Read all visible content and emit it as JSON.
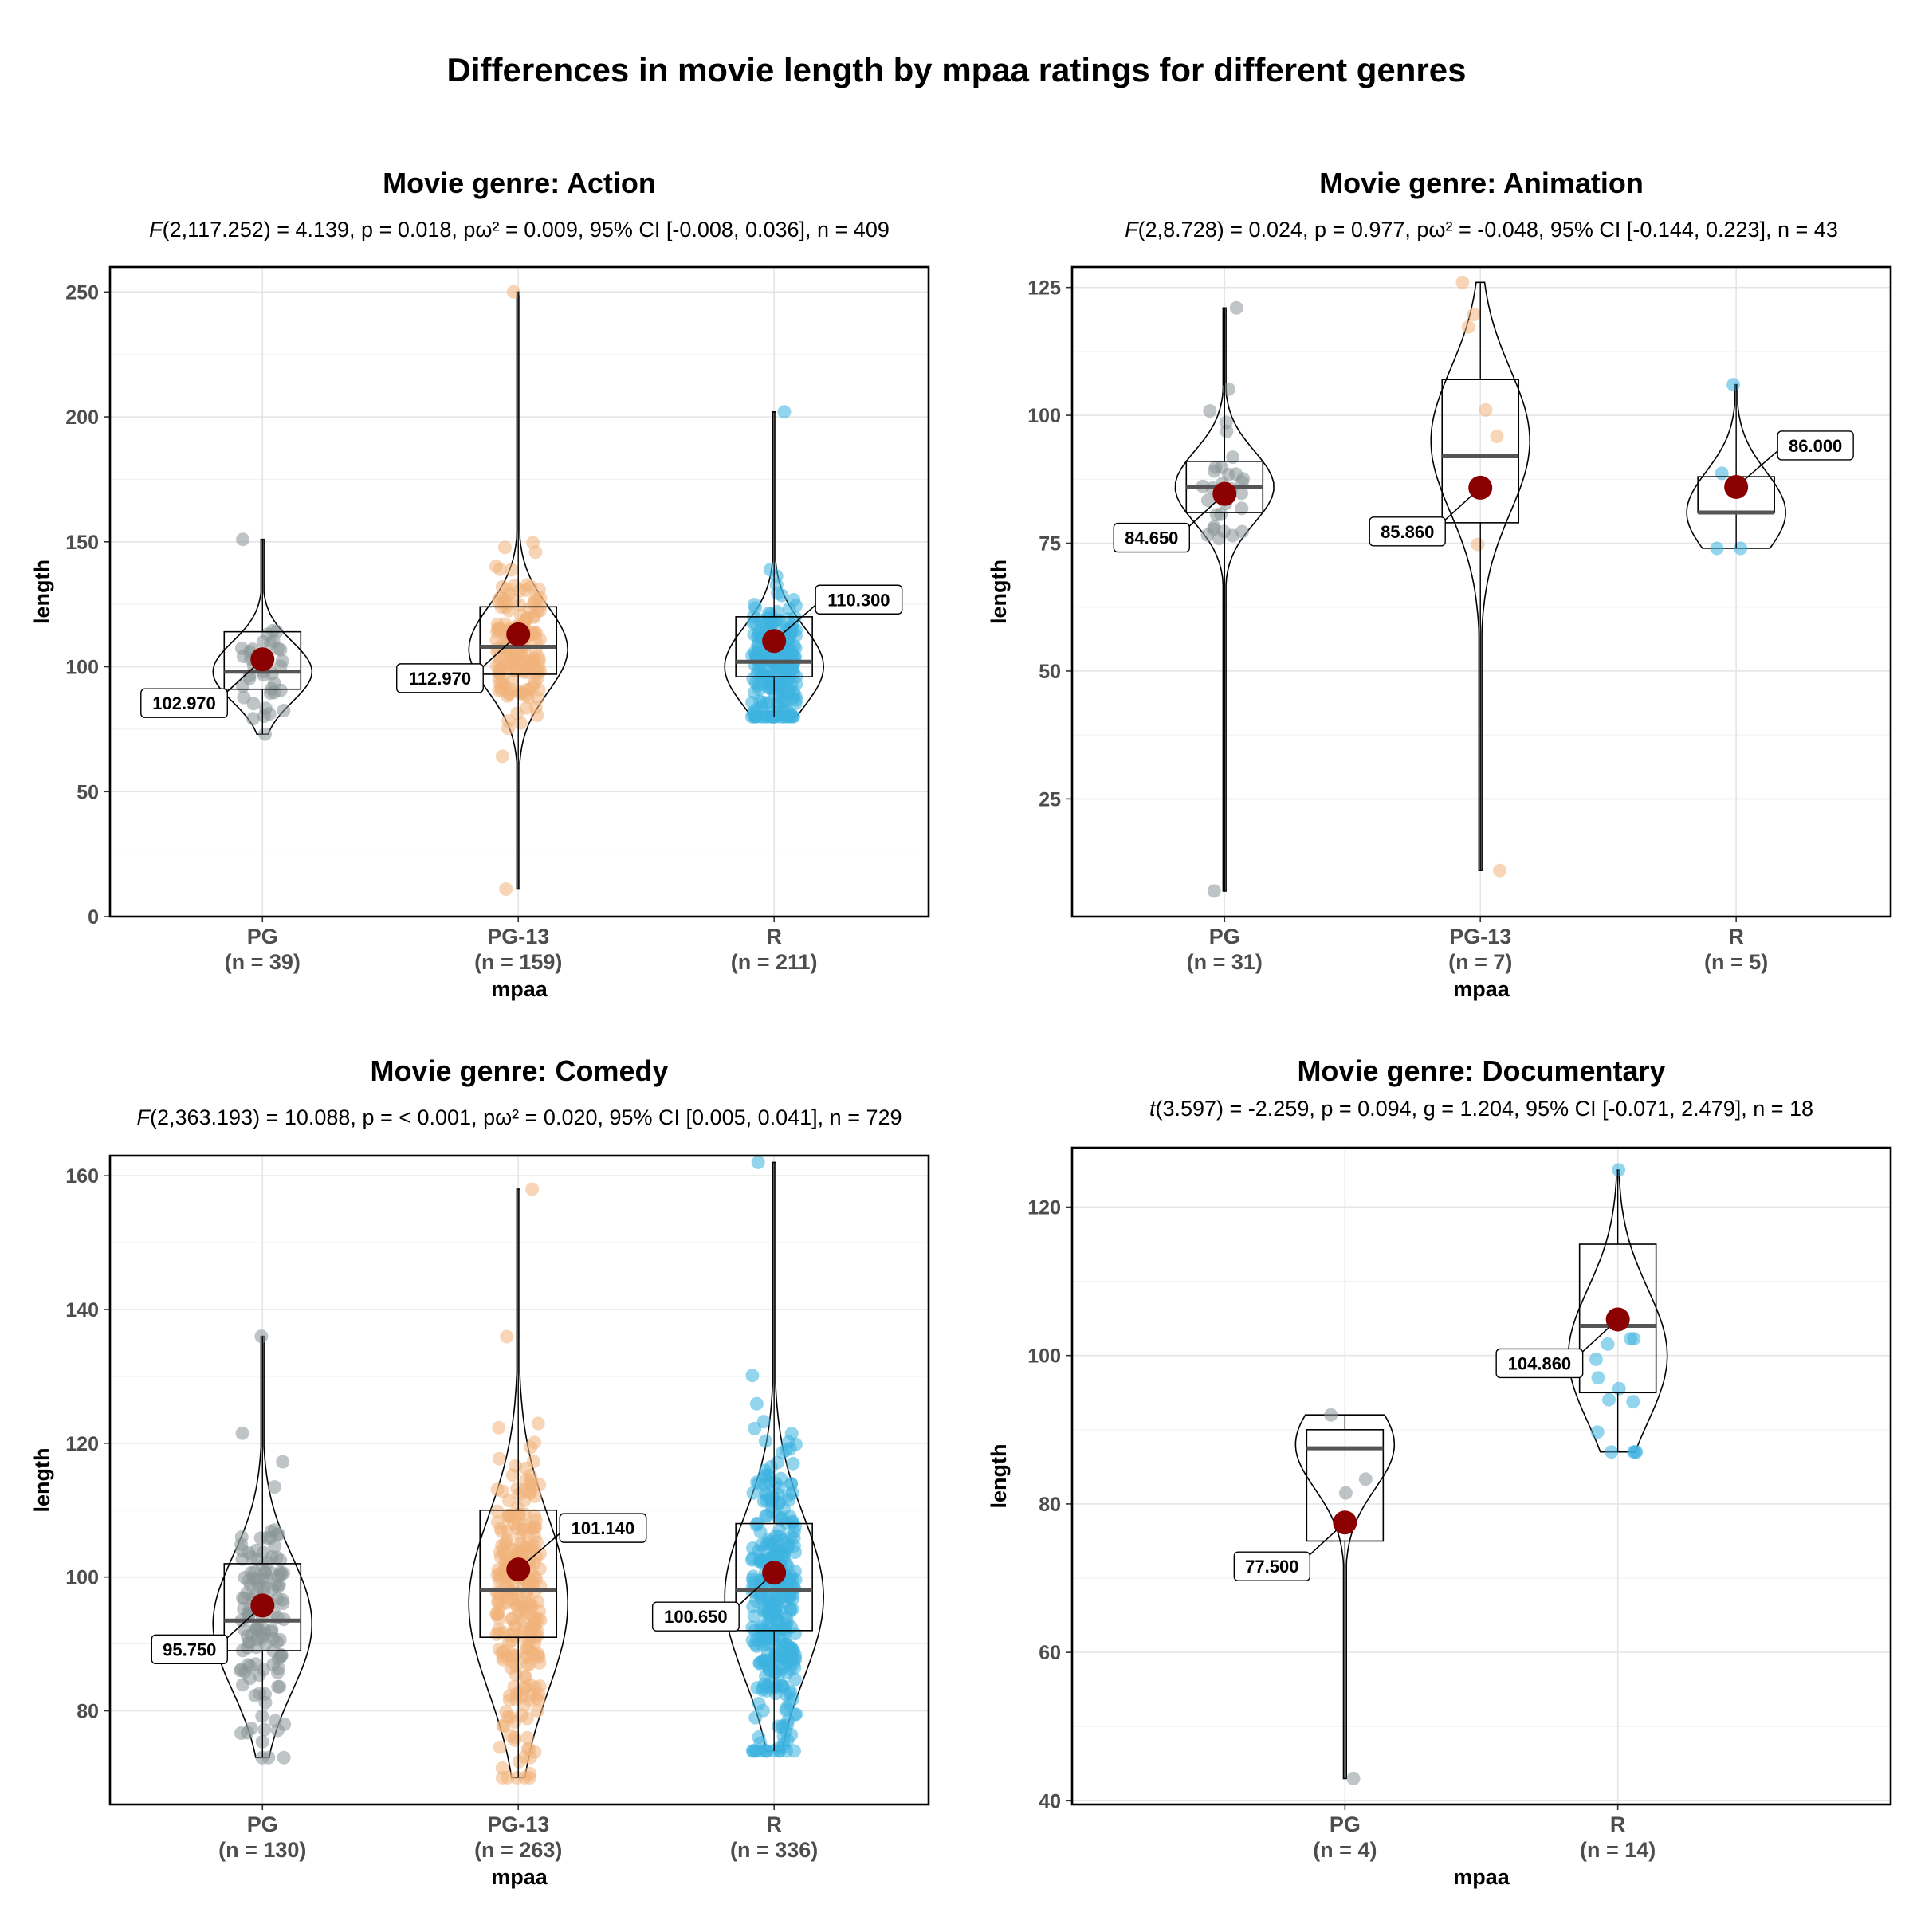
{
  "main_title": "Differences in movie length by mpaa ratings for different genres",
  "colors": {
    "PG": "#8a9597",
    "PG-13": "#f0b27a",
    "R": "#3cb2e0",
    "mean": "#8b0000",
    "median": "#555555",
    "grid": "#ebebeb"
  },
  "chart_data": [
    {
      "type": "violin-box-scatter",
      "title": "Movie genre: Action",
      "subtitle": {
        "lead": "F",
        "rest": "(2,117.252) = 4.139, p = 0.018, pω² = 0.009, 95% CI [-0.008, 0.036], n = 409"
      },
      "xlabel": "mpaa",
      "ylabel": "length",
      "ylim": [
        0,
        260
      ],
      "yticks": [
        0,
        50,
        100,
        150,
        200,
        250
      ],
      "groups": [
        {
          "name": "PG",
          "n_label": "(n = 39)",
          "min": 73,
          "max": 151,
          "q1": 91,
          "median": 98,
          "q3": 114,
          "mean": 102.97,
          "mean_label": "102.970",
          "label_side": "left",
          "n_points": 39,
          "mode": 98,
          "spread": 12
        },
        {
          "name": "PG-13",
          "n_label": "(n = 159)",
          "min": 11,
          "max": 250,
          "q1": 97,
          "median": 108,
          "q3": 124,
          "mean": 112.97,
          "mean_label": "112.970",
          "label_side": "left",
          "n_points": 159,
          "mode": 107,
          "spread": 17
        },
        {
          "name": "R",
          "n_label": "(n = 211)",
          "min": 80,
          "max": 202,
          "q1": 96,
          "median": 102,
          "q3": 120,
          "mean": 110.3,
          "mean_label": "110.300",
          "label_side": "right",
          "n_points": 211,
          "mode": 100,
          "spread": 16
        }
      ]
    },
    {
      "type": "violin-box-scatter",
      "title": "Movie genre: Animation",
      "subtitle": {
        "lead": "F",
        "rest": "(2,8.728) = 0.024, p = 0.977, pω² = -0.048, 95% CI [-0.144, 0.223], n = 43"
      },
      "xlabel": "mpaa",
      "ylabel": "length",
      "ylim": [
        2,
        129
      ],
      "yticks": [
        25,
        50,
        75,
        100,
        125
      ],
      "groups": [
        {
          "name": "PG",
          "n_label": "(n = 31)",
          "min": 7,
          "max": 121,
          "q1": 81,
          "median": 86,
          "q3": 91,
          "mean": 84.65,
          "mean_label": "84.650",
          "label_side": "left",
          "n_points": 31,
          "mode": 86,
          "spread": 7
        },
        {
          "name": "PG-13",
          "n_label": "(n = 7)",
          "min": 11,
          "max": 126,
          "q1": 79,
          "median": 92,
          "q3": 107,
          "mean": 85.86,
          "mean_label": "85.860",
          "label_side": "left",
          "n_points": 7,
          "mode": 95,
          "spread": 14
        },
        {
          "name": "R",
          "n_label": "(n = 5)",
          "min": 74,
          "max": 106,
          "q1": 81,
          "median": 81,
          "q3": 88,
          "mean": 86.0,
          "mean_label": "86.000",
          "label_side": "right",
          "n_points": 5,
          "mode": 81,
          "spread": 8
        }
      ]
    },
    {
      "type": "violin-box-scatter",
      "title": "Movie genre: Comedy",
      "subtitle": {
        "lead": "F",
        "rest": "(2,363.193) = 10.088, p = < 0.001, pω² = 0.020, 95% CI [0.005, 0.041], n = 729"
      },
      "xlabel": "mpaa",
      "ylabel": "length",
      "ylim": [
        66,
        163
      ],
      "yticks": [
        80,
        100,
        120,
        140,
        160
      ],
      "groups": [
        {
          "name": "PG",
          "n_label": "(n = 130)",
          "min": 73,
          "max": 136,
          "q1": 89,
          "median": 93.5,
          "q3": 102,
          "mean": 95.75,
          "mean_label": "95.750",
          "label_side": "left",
          "n_points": 130,
          "mode": 93,
          "spread": 10
        },
        {
          "name": "PG-13",
          "n_label": "(n = 263)",
          "min": 70,
          "max": 158,
          "q1": 91,
          "median": 98,
          "q3": 110,
          "mean": 101.14,
          "mean_label": "101.140",
          "label_side": "right",
          "n_points": 263,
          "mode": 96,
          "spread": 13
        },
        {
          "name": "R",
          "n_label": "(n = 336)",
          "min": 74,
          "max": 162,
          "q1": 92,
          "median": 98,
          "q3": 108,
          "mean": 100.65,
          "mean_label": "100.650",
          "label_side": "left",
          "n_points": 336,
          "mode": 97,
          "spread": 12
        }
      ]
    },
    {
      "type": "violin-box-scatter",
      "title": "Movie genre: Documentary",
      "subtitle": {
        "lead": "t",
        "rest": "(3.597) = -2.259, p = 0.094, g = 1.204, 95% CI [-0.071, 2.479], n = 18"
      },
      "xlabel": "mpaa",
      "ylabel": "length",
      "ylim": [
        39.5,
        128
      ],
      "yticks": [
        40,
        60,
        80,
        100,
        120
      ],
      "groups": [
        {
          "name": "PG",
          "n_label": "(n = 4)",
          "min": 43,
          "max": 92,
          "q1": 75,
          "median": 87.5,
          "q3": 90,
          "mean": 77.5,
          "mean_label": "77.500",
          "label_side": "left",
          "n_points": 4,
          "mode": 88,
          "spread": 6
        },
        {
          "name": "R",
          "n_label": "(n = 14)",
          "min": 87,
          "max": 125,
          "q1": 95,
          "median": 104,
          "q3": 115,
          "mean": 104.86,
          "mean_label": "104.860",
          "label_side": "left",
          "n_points": 14,
          "mode": 100,
          "spread": 9
        }
      ]
    }
  ]
}
